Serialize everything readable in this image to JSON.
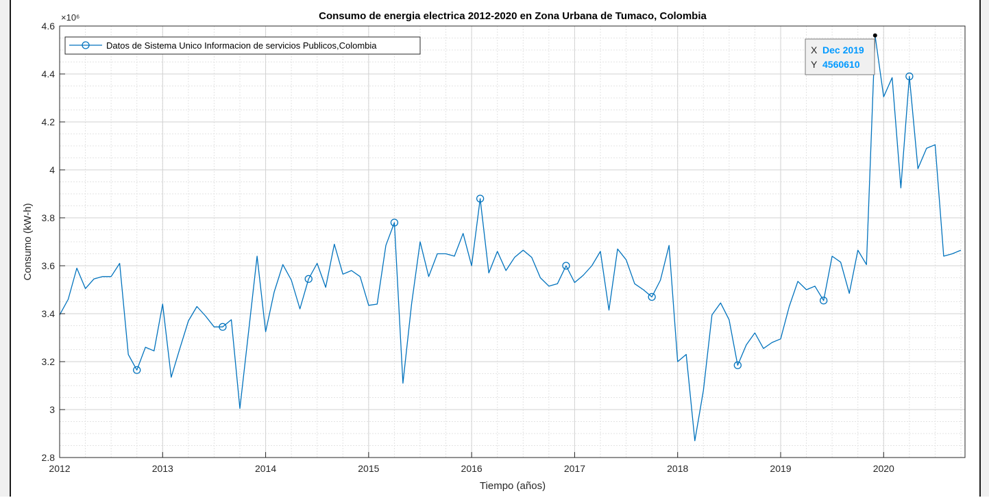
{
  "chart_data": {
    "type": "line",
    "title": "Consumo de energia electrica 2012-2020 en Zona Urbana de Tumaco, Colombia",
    "xlabel": "Tiempo (años)",
    "ylabel": "Consumo (kW-h)",
    "exponent_label": "×10⁶",
    "xlim": [
      2012.0,
      2020.79
    ],
    "ylim": [
      2800000,
      4600000
    ],
    "x_ticks": [
      2012,
      2013,
      2014,
      2015,
      2016,
      2017,
      2018,
      2019,
      2020
    ],
    "y_ticks": [
      2.8,
      3.0,
      3.2,
      3.4,
      3.6,
      3.8,
      4.0,
      4.2,
      4.4,
      4.6
    ],
    "y_tick_labels": [
      "2.8",
      "3",
      "3.2",
      "3.4",
      "3.6",
      "3.8",
      "4",
      "4.2",
      "4.4",
      "4.6"
    ],
    "grid": true,
    "legend_position": "top-left",
    "line_color": "#0072bd",
    "marker_every": 10,
    "series": [
      {
        "name": "Datos de Sistema Unico Informacion de servicios Publicos,Colombia",
        "x": [
          2012.0,
          2012.083,
          2012.167,
          2012.25,
          2012.333,
          2012.417,
          2012.5,
          2012.583,
          2012.667,
          2012.75,
          2012.833,
          2012.917,
          2013.0,
          2013.083,
          2013.167,
          2013.25,
          2013.333,
          2013.417,
          2013.5,
          2013.583,
          2013.667,
          2013.75,
          2013.833,
          2013.917,
          2014.0,
          2014.083,
          2014.167,
          2014.25,
          2014.333,
          2014.417,
          2014.5,
          2014.583,
          2014.667,
          2014.75,
          2014.833,
          2014.917,
          2015.0,
          2015.083,
          2015.167,
          2015.25,
          2015.333,
          2015.417,
          2015.5,
          2015.583,
          2015.667,
          2015.75,
          2015.833,
          2015.917,
          2016.0,
          2016.083,
          2016.167,
          2016.25,
          2016.333,
          2016.417,
          2016.5,
          2016.583,
          2016.667,
          2016.75,
          2016.833,
          2016.917,
          2017.0,
          2017.083,
          2017.167,
          2017.25,
          2017.333,
          2017.417,
          2017.5,
          2017.583,
          2017.667,
          2017.75,
          2017.833,
          2017.917,
          2018.0,
          2018.083,
          2018.167,
          2018.25,
          2018.333,
          2018.417,
          2018.5,
          2018.583,
          2018.667,
          2018.75,
          2018.833,
          2018.917,
          2019.0,
          2019.083,
          2019.167,
          2019.25,
          2019.333,
          2019.417,
          2019.5,
          2019.583,
          2019.667,
          2019.75,
          2019.833,
          2019.917,
          2020.0,
          2020.083,
          2020.167,
          2020.25,
          2020.333,
          2020.417,
          2020.5,
          2020.583,
          2020.667,
          2020.75
        ],
        "values": [
          3395000,
          3460000,
          3590000,
          3505000,
          3545000,
          3555000,
          3555000,
          3610000,
          3230000,
          3165000,
          3260000,
          3245000,
          3440000,
          3135000,
          3255000,
          3370000,
          3430000,
          3390000,
          3345000,
          3345000,
          3375000,
          3005000,
          3320000,
          3640000,
          3325000,
          3490000,
          3605000,
          3540000,
          3420000,
          3545000,
          3610000,
          3510000,
          3690000,
          3565000,
          3580000,
          3555000,
          3435000,
          3440000,
          3685000,
          3780000,
          3110000,
          3440000,
          3700000,
          3555000,
          3650000,
          3650000,
          3640000,
          3735000,
          3600000,
          3880000,
          3570000,
          3660000,
          3580000,
          3635000,
          3665000,
          3635000,
          3550000,
          3515000,
          3525000,
          3600000,
          3530000,
          3560000,
          3600000,
          3660000,
          3415000,
          3670000,
          3625000,
          3525000,
          3500000,
          3470000,
          3540000,
          3685000,
          3200000,
          3230000,
          2870000,
          3080000,
          3395000,
          3445000,
          3375000,
          3185000,
          3270000,
          3320000,
          3255000,
          3280000,
          3295000,
          3430000,
          3535000,
          3500000,
          3515000,
          3455000,
          3640000,
          3615000,
          3485000,
          3665000,
          3605000,
          4560610,
          4305000,
          4385000,
          3925000,
          4390000,
          4005000,
          4090000,
          4105000,
          3640000,
          3650000,
          3665000
        ]
      }
    ],
    "datatip": {
      "x_label": "X",
      "x_value": "Dec 2019",
      "y_label": "Y",
      "y_value": "4560610",
      "point_index": 95
    }
  }
}
